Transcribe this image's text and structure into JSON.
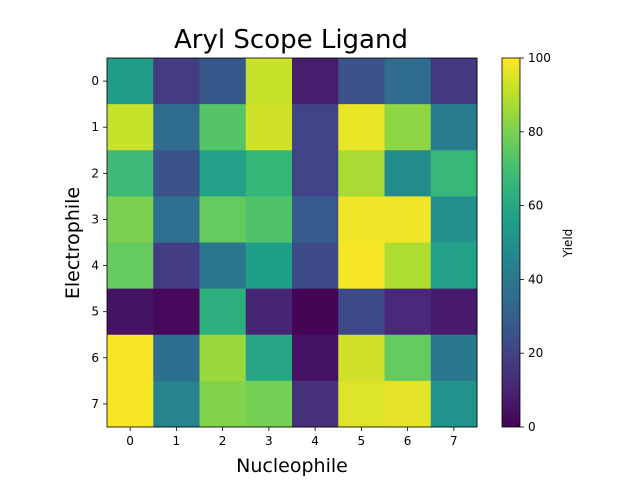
{
  "chart_data": {
    "type": "heatmap",
    "title": "Aryl Scope Ligand",
    "xlabel": "Nucleophile",
    "ylabel": "Electrophile",
    "x_ticks": [
      "0",
      "1",
      "2",
      "3",
      "4",
      "5",
      "6",
      "7"
    ],
    "y_ticks": [
      "0",
      "1",
      "2",
      "3",
      "4",
      "5",
      "6",
      "7"
    ],
    "colorbar": {
      "label": "Yield",
      "range": [
        0,
        100
      ],
      "ticks": [
        "0",
        "20",
        "40",
        "60",
        "80",
        "100"
      ],
      "colormap": "viridis"
    },
    "values": [
      [
        55,
        18,
        27,
        92,
        8,
        25,
        35,
        17
      ],
      [
        92,
        35,
        73,
        93,
        20,
        97,
        83,
        42
      ],
      [
        68,
        25,
        57,
        66,
        20,
        87,
        48,
        67
      ],
      [
        80,
        37,
        76,
        72,
        28,
        98,
        98,
        50
      ],
      [
        76,
        18,
        40,
        56,
        23,
        99,
        88,
        57
      ],
      [
        5,
        2,
        63,
        10,
        1,
        22,
        11,
        7
      ],
      [
        99,
        36,
        85,
        59,
        5,
        93,
        76,
        40
      ],
      [
        99,
        45,
        81,
        79,
        14,
        95,
        96,
        52
      ]
    ],
    "grid": false
  }
}
